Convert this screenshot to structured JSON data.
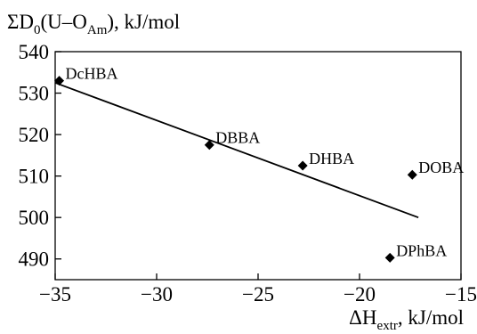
{
  "chart_data": {
    "type": "scatter",
    "ylabel": {
      "main": "ΣD",
      "sub0": "0",
      "mid": "(U–O",
      "sub1": "Am",
      "end": "), kJ/mol"
    },
    "xlabel": {
      "main": "ΔH",
      "sub": "extr",
      "end": ", kJ/mol"
    },
    "xlim": [
      -35,
      -15
    ],
    "ylim": [
      485,
      540
    ],
    "x_ticks": [
      -35,
      -30,
      -25,
      -20,
      -15
    ],
    "x_tick_labels": [
      "−35",
      "−30",
      "−25",
      "−20",
      "−15"
    ],
    "y_ticks": [
      490,
      500,
      510,
      520,
      530,
      540
    ],
    "y_tick_labels": [
      "490",
      "500",
      "510",
      "520",
      "530",
      "540"
    ],
    "grid": false,
    "points": [
      {
        "label": "DcHBA",
        "x": -34.8,
        "y": 533.0
      },
      {
        "label": "DBBA",
        "x": -27.4,
        "y": 517.5
      },
      {
        "label": "DHBA",
        "x": -22.8,
        "y": 512.5
      },
      {
        "label": "DOBA",
        "x": -17.4,
        "y": 510.3
      },
      {
        "label": "DPhBA",
        "x": -18.5,
        "y": 490.3
      }
    ],
    "fit_line": {
      "x": [
        -35,
        -17.1
      ],
      "y": [
        532.5,
        500.0
      ]
    }
  }
}
